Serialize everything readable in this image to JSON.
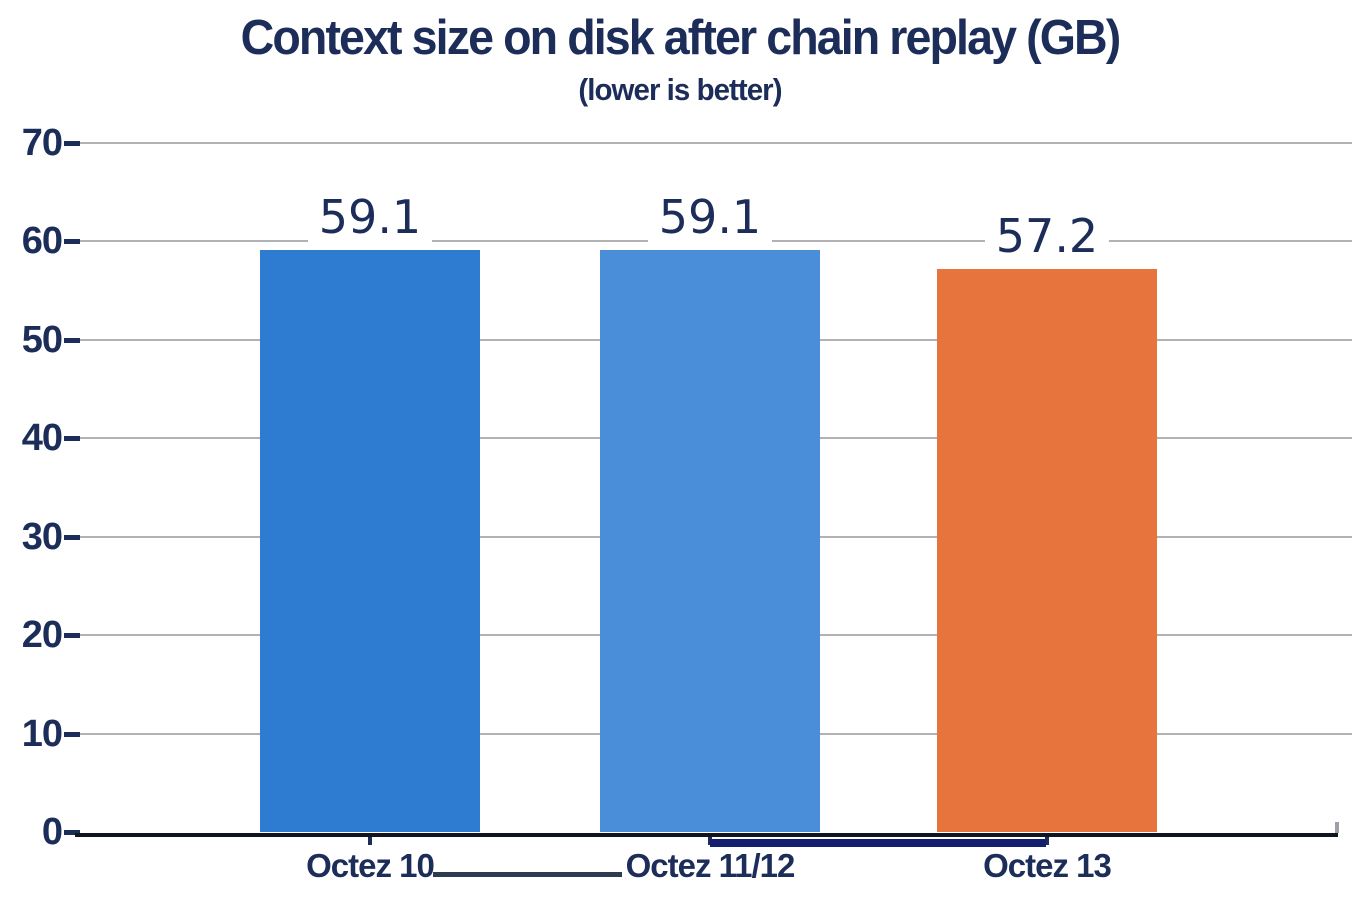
{
  "title": "Context size on disk after chain replay (GB)",
  "subtitle": "(lower is better)",
  "chart_data": {
    "type": "bar",
    "title": "Context size on disk after chain replay (GB)",
    "subtitle": "(lower is better)",
    "categories": [
      "Octez 10",
      "Octez 11/12",
      "Octez 13"
    ],
    "values": [
      59.1,
      59.1,
      57.2
    ],
    "value_labels": [
      "59.1",
      "59.1",
      "57.2"
    ],
    "bar_colors": [
      "#2e7cd1",
      "#4a8dd8",
      "#e7743c"
    ],
    "xlabel": "",
    "ylabel": "",
    "ylim": [
      0,
      70
    ],
    "yticks": [
      0,
      10,
      20,
      30,
      40,
      50,
      60,
      70
    ],
    "grid": "horizontal",
    "legend": "none"
  },
  "colors": {
    "text_navy": "#1b2d58",
    "axis_line": "#10151f",
    "gridline": "#b2b2b6",
    "annotation_line_a": "#2d3b50",
    "annotation_line_b": "#141f70"
  },
  "annotations": [
    {
      "name": "connector-line-octez10-octez1112",
      "style": "thin dark line between first and second category labels"
    },
    {
      "name": "thick-navy-line-under-axis",
      "style": "thick navy line below axis from Octez 11/12 to Octez 13 tick"
    }
  ]
}
